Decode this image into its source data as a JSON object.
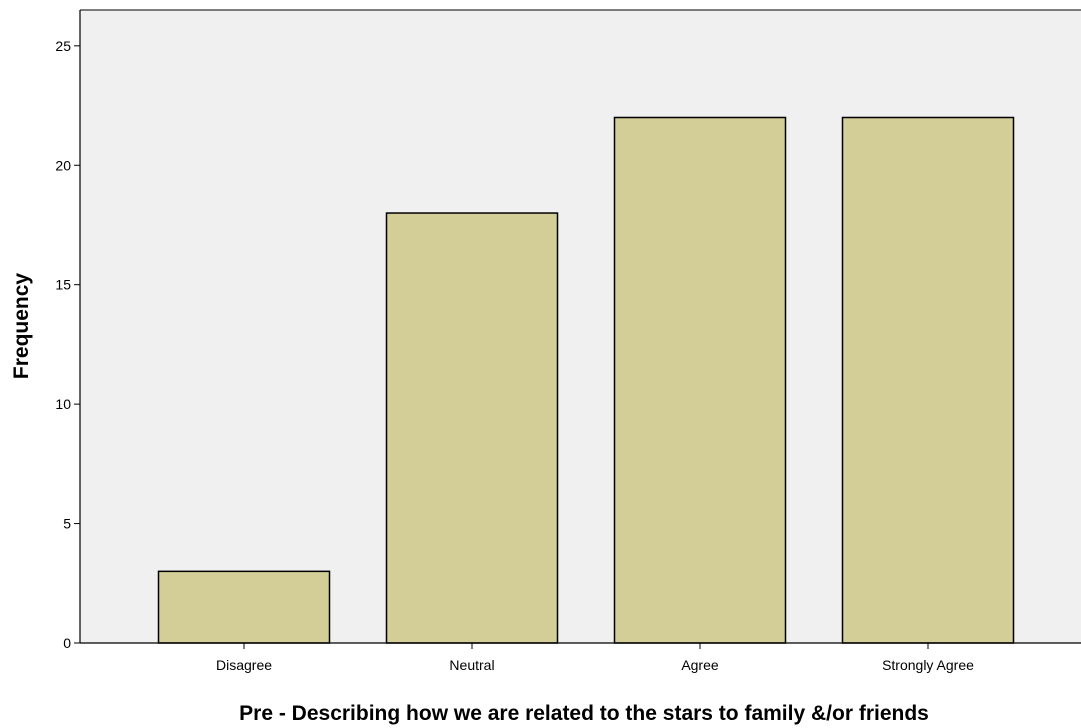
{
  "chart_data": {
    "type": "bar",
    "categories": [
      "Disagree",
      "Neutral",
      "Agree",
      "Strongly Agree"
    ],
    "values": [
      3,
      18,
      22,
      22
    ],
    "xlabel": "Pre - Describing how we are related to the stars to family &/or friends",
    "ylabel": "Frequency",
    "ylim": [
      0,
      26.5
    ],
    "yticks": [
      0,
      5,
      10,
      15,
      20,
      25
    ],
    "grid": false,
    "legend": "none",
    "colors": {
      "bar_fill": "#d3ce98",
      "bar_stroke": "#000000",
      "plot_background": "#f0f0f0",
      "page_background": "#ffffff"
    }
  }
}
